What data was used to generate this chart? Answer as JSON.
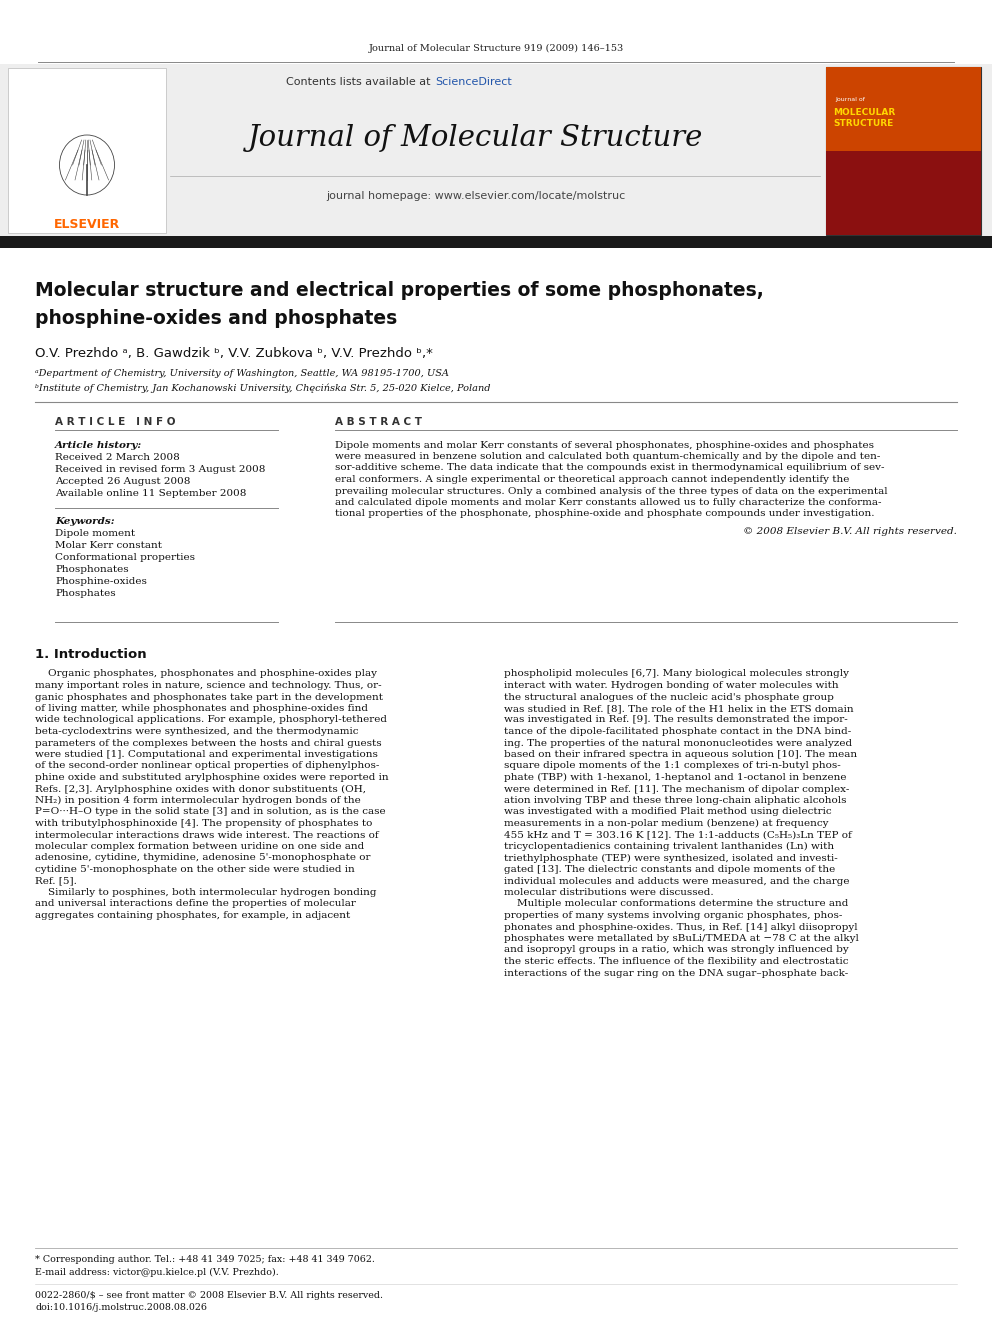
{
  "journal_header_text": "Journal of Molecular Structure 919 (2009) 146–153",
  "contents_text": "Contents lists available at",
  "sciencedirect_text": "ScienceDirect",
  "journal_name": "Journal of Molecular Structure",
  "journal_homepage": "journal homepage: www.elsevier.com/locate/molstruc",
  "paper_title_line1": "Molecular structure and electrical properties of some phosphonates,",
  "paper_title_line2": "phosphine-oxides and phosphates",
  "authors": "O.V. Prezhdo ᵃ, B. Gawdzik ᵇ, V.V. Zubkova ᵇ, V.V. Prezhdo ᵇ,*",
  "affil_a": "ᵃDepartment of Chemistry, University of Washington, Seattle, WA 98195-1700, USA",
  "affil_b": "ᵇInstitute of Chemistry, Jan Kochanowski University, Chęcińska Str. 5, 25-020 Kielce, Poland",
  "article_info_header": "A R T I C L E   I N F O",
  "abstract_header": "A B S T R A C T",
  "article_history_header": "Article history:",
  "received1": "Received 2 March 2008",
  "received2": "Received in revised form 3 August 2008",
  "accepted": "Accepted 26 August 2008",
  "available": "Available online 11 September 2008",
  "keywords_header": "Keywords:",
  "keywords": [
    "Dipole moment",
    "Molar Kerr constant",
    "Conformational properties",
    "Phosphonates",
    "Phosphine-oxides",
    "Phosphates"
  ],
  "abstract_text": "Dipole moments and molar Kerr constants of several phosphonates, phosphine-oxides and phosphates were measured in benzene solution and calculated both quantum-chemically and by the dipole and tensor-additive scheme. The data indicate that the compounds exist in thermodynamical equilibrium of several conformers. A single experimental or theoretical approach cannot independently identify the prevailing molecular structures. Only a combined analysis of the three types of data on the experimental and calculated dipole moments and molar Kerr constants allowed us to fully characterize the conformational properties of the phosphonate, phosphine-oxide and phosphate compounds under investigation.",
  "copyright": "© 2008 Elsevier B.V. All rights reserved.",
  "section1_header": "1. Introduction",
  "intro_col1_lines": [
    "    Organic phosphates, phosphonates and phosphine-oxides play",
    "many important roles in nature, science and technology. Thus, or-",
    "ganic phosphates and phosphonates take part in the development",
    "of living matter, while phosphonates and phosphine-oxides find",
    "wide technological applications. For example, phosphoryl-tethered",
    "beta-cyclodextrins were synthesized, and the thermodynamic",
    "parameters of the complexes between the hosts and chiral guests",
    "were studied [1]. Computational and experimental investigations",
    "of the second-order nonlinear optical properties of diphenylphos-",
    "phine oxide and substituted arylphosphine oxides were reported in",
    "Refs. [2,3]. Arylphosphine oxides with donor substituents (OH,",
    "NH₂) in position 4 form intermolecular hydrogen bonds of the",
    "P=O···H–O type in the solid state [3] and in solution, as is the case",
    "with tributylphosphinoxide [4]. The propensity of phosphates to",
    "intermolecular interactions draws wide interest. The reactions of",
    "molecular complex formation between uridine on one side and",
    "adenosine, cytidine, thymidine, adenosine 5'-monophosphate or",
    "cytidine 5'-monophosphate on the other side were studied in",
    "Ref. [5].",
    "    Similarly to posphines, both intermolecular hydrogen bonding",
    "and universal interactions define the properties of molecular",
    "aggregates containing phosphates, for example, in adjacent"
  ],
  "intro_col2_lines": [
    "phospholipid molecules [6,7]. Many biological molecules strongly",
    "interact with water. Hydrogen bonding of water molecules with",
    "the structural analogues of the nucleic acid's phosphate group",
    "was studied in Ref. [8]. The role of the H1 helix in the ETS domain",
    "was investigated in Ref. [9]. The results demonstrated the impor-",
    "tance of the dipole-facilitated phosphate contact in the DNA bind-",
    "ing. The properties of the natural mononucleotides were analyzed",
    "based on their infrared spectra in aqueous solution [10]. The mean",
    "square dipole moments of the 1:1 complexes of tri-n-butyl phos-",
    "phate (TBP) with 1-hexanol, 1-heptanol and 1-octanol in benzene",
    "were determined in Ref. [11]. The mechanism of dipolar complex-",
    "ation involving TBP and these three long-chain aliphatic alcohols",
    "was investigated with a modified Plait method using dielectric",
    "measurements in a non-polar medium (benzene) at frequency",
    "455 kHz and T = 303.16 K [12]. The 1:1-adducts (C₅H₅)₃Ln TEP of",
    "tricyclopentadienics containing trivalent lanthanides (Ln) with",
    "triethylphosphate (TEP) were synthesized, isolated and investi-",
    "gated [13]. The dielectric constants and dipole moments of the",
    "individual molecules and adducts were measured, and the charge",
    "molecular distributions were discussed.",
    "    Multiple molecular conformations determine the structure and",
    "properties of many systems involving organic phosphates, phos-",
    "phonates and phosphine-oxides. Thus, in Ref. [14] alkyl diisopropyl",
    "phosphates were metallated by sBuLi/TMEDA at −78 C at the alkyl",
    "and isopropyl groups in a ratio, which was strongly influenced by",
    "the steric effects. The influence of the flexibility and electrostatic",
    "interactions of the sugar ring on the DNA sugar–phosphate back-"
  ],
  "footer_corr": "* Corresponding author. Tel.: +48 41 349 7025; fax: +48 41 349 7062.",
  "footer_email": "E-mail address: victor@pu.kielce.pl (V.V. Prezhdo).",
  "footer_issn": "0022-2860/$ – see front matter © 2008 Elsevier B.V. All rights reserved.",
  "footer_doi": "doi:10.1016/j.molstruc.2008.08.026",
  "bg_color": "#ffffff",
  "header_bg": "#eeeeee",
  "black_bar_color": "#1a1a1a",
  "elsevier_orange": "#FF6600",
  "sciencedirect_blue": "#2255aa",
  "text_color": "#000000",
  "abstract_lines": [
    "Dipole moments and molar Kerr constants of several phosphonates, phosphine-oxides and phosphates",
    "were measured in benzene solution and calculated both quantum-chemically and by the dipole and ten-",
    "sor-additive scheme. The data indicate that the compounds exist in thermodynamical equilibrium of sev-",
    "eral conformers. A single experimental or theoretical approach cannot independently identify the",
    "prevailing molecular structures. Only a combined analysis of the three types of data on the experimental",
    "and calculated dipole moments and molar Kerr constants allowed us to fully characterize the conforma-",
    "tional properties of the phosphonate, phosphine-oxide and phosphate compounds under investigation."
  ]
}
